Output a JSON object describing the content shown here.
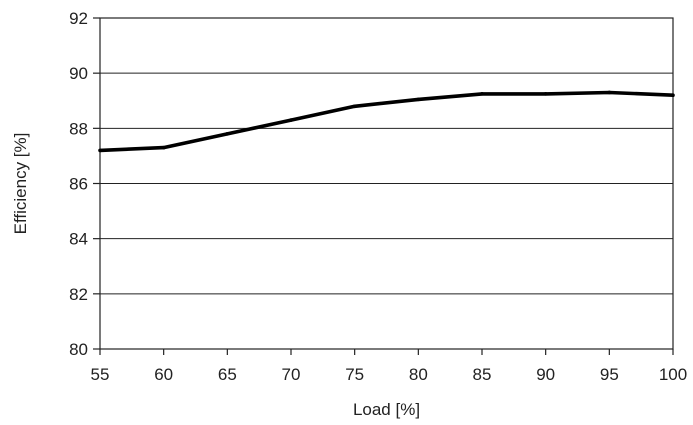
{
  "chart_data": {
    "type": "line",
    "xlabel": "Load [%]",
    "ylabel": "Efficiency [%]",
    "xlim": [
      55,
      100
    ],
    "ylim": [
      80,
      92
    ],
    "xticks": [
      55,
      60,
      65,
      70,
      75,
      80,
      85,
      90,
      95,
      100
    ],
    "yticks": [
      80,
      82,
      84,
      86,
      88,
      90,
      92
    ],
    "grid": "horizontal",
    "legend": "none",
    "series": [
      {
        "color": "#000000",
        "x": [
          55,
          60,
          65,
          70,
          75,
          80,
          85,
          90,
          95,
          100
        ],
        "y": [
          87.2,
          87.3,
          87.8,
          88.3,
          88.8,
          89.05,
          89.25,
          89.25,
          89.3,
          89.2
        ]
      }
    ]
  }
}
